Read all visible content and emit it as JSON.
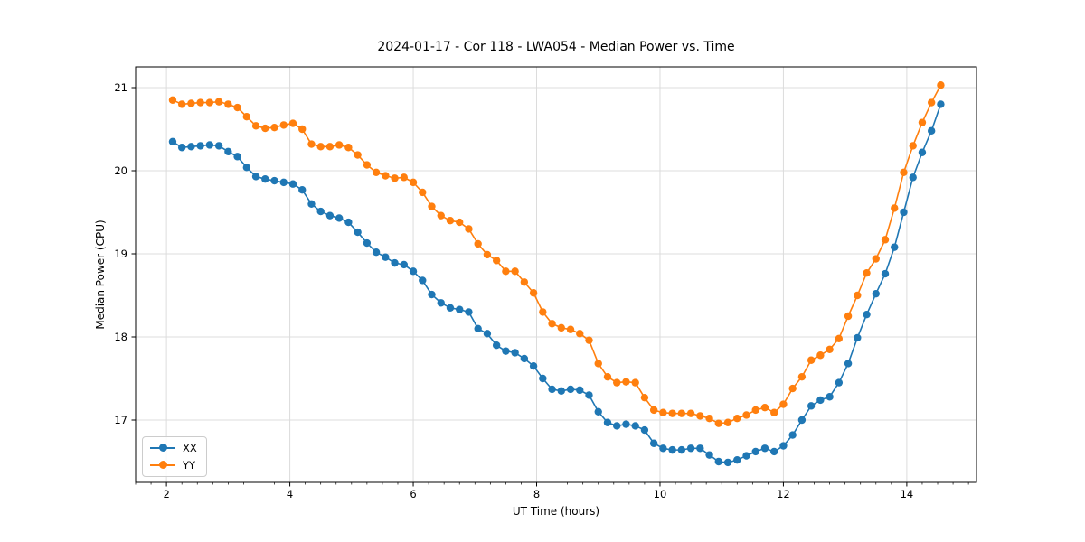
{
  "title": "2024-01-17 - Cor 118 - LWA054 - Median Power vs. Time",
  "chart_data": {
    "type": "line",
    "title": "2024-01-17 - Cor 118 - LWA054 - Median Power vs. Time",
    "xlabel": "UT Time (hours)",
    "ylabel": "Median Power (CPU)",
    "xlim": [
      1.5,
      15.13
    ],
    "ylim": [
      16.25,
      21.25
    ],
    "xticks": [
      2,
      4,
      6,
      8,
      10,
      12,
      14
    ],
    "yticks": [
      17,
      18,
      19,
      20,
      21
    ],
    "x_minor_step": 0.25,
    "grid": true,
    "grid_color": "#dcdcdc",
    "axes_color": "#000000",
    "background": "#ffffff",
    "legend_position": "lower left",
    "marker": "circle",
    "x": [
      2.1,
      2.25,
      2.4,
      2.55,
      2.7,
      2.85,
      3.0,
      3.15,
      3.3,
      3.45,
      3.6,
      3.75,
      3.9,
      4.05,
      4.2,
      4.35,
      4.5,
      4.65,
      4.8,
      4.95,
      5.1,
      5.25,
      5.4,
      5.55,
      5.7,
      5.85,
      6.0,
      6.15,
      6.3,
      6.45,
      6.6,
      6.75,
      6.9,
      7.05,
      7.2,
      7.35,
      7.5,
      7.65,
      7.8,
      7.95,
      8.1,
      8.25,
      8.4,
      8.55,
      8.7,
      8.85,
      9.0,
      9.15,
      9.3,
      9.45,
      9.6,
      9.75,
      9.9,
      10.05,
      10.2,
      10.35,
      10.5,
      10.65,
      10.8,
      10.95,
      11.1,
      11.25,
      11.4,
      11.55,
      11.7,
      11.85,
      12.0,
      12.15,
      12.3,
      12.45,
      12.6,
      12.75,
      12.9,
      13.05,
      13.2,
      13.35,
      13.5,
      13.65,
      13.8,
      13.95,
      14.1,
      14.25,
      14.4,
      14.55
    ],
    "series": [
      {
        "name": "XX",
        "color": "#1f77b4",
        "values": [
          20.35,
          20.28,
          20.29,
          20.3,
          20.31,
          20.3,
          20.23,
          20.17,
          20.04,
          19.93,
          19.9,
          19.88,
          19.86,
          19.84,
          19.77,
          19.6,
          19.51,
          19.46,
          19.43,
          19.38,
          19.26,
          19.13,
          19.02,
          18.96,
          18.89,
          18.87,
          18.79,
          18.68,
          18.51,
          18.41,
          18.35,
          18.33,
          18.3,
          18.1,
          18.04,
          17.9,
          17.83,
          17.81,
          17.74,
          17.65,
          17.5,
          17.37,
          17.35,
          17.37,
          17.36,
          17.3,
          17.1,
          16.97,
          16.93,
          16.95,
          16.93,
          16.88,
          16.72,
          16.66,
          16.64,
          16.64,
          16.66,
          16.66,
          16.58,
          16.5,
          16.49,
          16.52,
          16.57,
          16.62,
          16.66,
          16.62,
          16.69,
          16.82,
          17.0,
          17.17,
          17.24,
          17.28,
          17.45,
          17.68,
          17.99,
          18.27,
          18.52,
          18.76,
          19.08,
          19.5,
          19.92,
          20.22,
          20.48,
          20.8
        ]
      },
      {
        "name": "YY",
        "color": "#ff7f0e",
        "values": [
          20.85,
          20.8,
          20.81,
          20.82,
          20.82,
          20.83,
          20.8,
          20.76,
          20.65,
          20.54,
          20.51,
          20.52,
          20.55,
          20.57,
          20.5,
          20.32,
          20.29,
          20.29,
          20.31,
          20.28,
          20.19,
          20.07,
          19.98,
          19.94,
          19.91,
          19.92,
          19.86,
          19.74,
          19.57,
          19.46,
          19.4,
          19.38,
          19.3,
          19.12,
          18.99,
          18.92,
          18.79,
          18.79,
          18.66,
          18.53,
          18.3,
          18.16,
          18.11,
          18.09,
          18.04,
          17.96,
          17.68,
          17.52,
          17.45,
          17.46,
          17.45,
          17.27,
          17.12,
          17.09,
          17.08,
          17.08,
          17.08,
          17.05,
          17.02,
          16.96,
          16.97,
          17.02,
          17.06,
          17.12,
          17.15,
          17.09,
          17.19,
          17.38,
          17.52,
          17.72,
          17.78,
          17.85,
          17.98,
          18.25,
          18.5,
          18.77,
          18.94,
          19.17,
          19.55,
          19.98,
          20.3,
          20.58,
          20.82,
          21.03
        ]
      }
    ]
  }
}
